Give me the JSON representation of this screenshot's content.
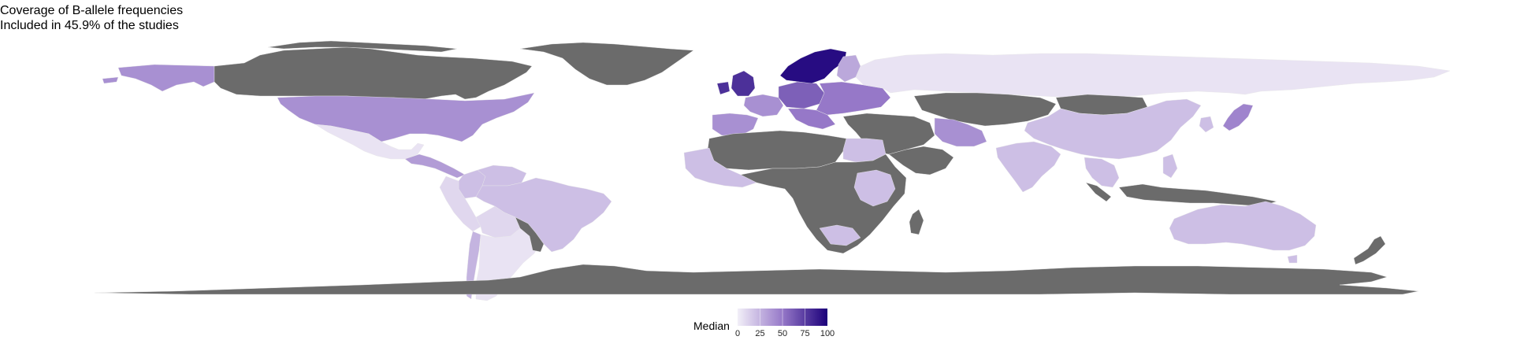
{
  "title": "Coverage of B-allele frequencies",
  "subtitle": "Included in 45.9% of the studies",
  "legend": {
    "title": "Median",
    "ticks": [
      "0",
      "25",
      "50",
      "75",
      "100"
    ],
    "min": 0,
    "max": 100,
    "color_low": "#f2eff8",
    "color_high": "#1b007a"
  },
  "colors": {
    "no_data": "#6b6b6b",
    "ocean": "#ffffff"
  },
  "regions": [
    {
      "name": "Alaska",
      "median": 40
    },
    {
      "name": "Canada",
      "median": null
    },
    {
      "name": "Greenland",
      "median": null
    },
    {
      "name": "United States",
      "median": 40
    },
    {
      "name": "Mexico",
      "median": 5
    },
    {
      "name": "Central America",
      "median": 35
    },
    {
      "name": "Colombia",
      "median": 20
    },
    {
      "name": "Venezuela",
      "median": 20
    },
    {
      "name": "Peru",
      "median": 10
    },
    {
      "name": "Brazil",
      "median": 20
    },
    {
      "name": "Bolivia",
      "median": 10
    },
    {
      "name": "Chile",
      "median": 25
    },
    {
      "name": "Argentina",
      "median": 5
    },
    {
      "name": "Uruguay",
      "median": null
    },
    {
      "name": "United Kingdom",
      "median": 80
    },
    {
      "name": "France",
      "median": 40
    },
    {
      "name": "Iberia",
      "median": 40
    },
    {
      "name": "Germany",
      "median": 60
    },
    {
      "name": "Scandinavia",
      "median": 95
    },
    {
      "name": "Finland",
      "median": 30
    },
    {
      "name": "Eastern Europe",
      "median": 50
    },
    {
      "name": "Russia",
      "median": 5
    },
    {
      "name": "Iran",
      "median": 40
    },
    {
      "name": "Central Asia",
      "median": null
    },
    {
      "name": "Mongolia",
      "median": null
    },
    {
      "name": "China",
      "median": 20
    },
    {
      "name": "India",
      "median": 20
    },
    {
      "name": "Japan",
      "median": 45
    },
    {
      "name": "Southeast Asia",
      "median": 20
    },
    {
      "name": "Indonesia",
      "median": null
    },
    {
      "name": "North Africa",
      "median": null
    },
    {
      "name": "West Africa",
      "median": 20
    },
    {
      "name": "Egypt",
      "median": 20
    },
    {
      "name": "Sub-Saharan Africa",
      "median": null
    },
    {
      "name": "East Africa",
      "median": 20
    },
    {
      "name": "Madagascar",
      "median": null
    },
    {
      "name": "Australia",
      "median": 20
    },
    {
      "name": "New Zealand",
      "median": null
    },
    {
      "name": "Antarctica",
      "median": null
    }
  ]
}
